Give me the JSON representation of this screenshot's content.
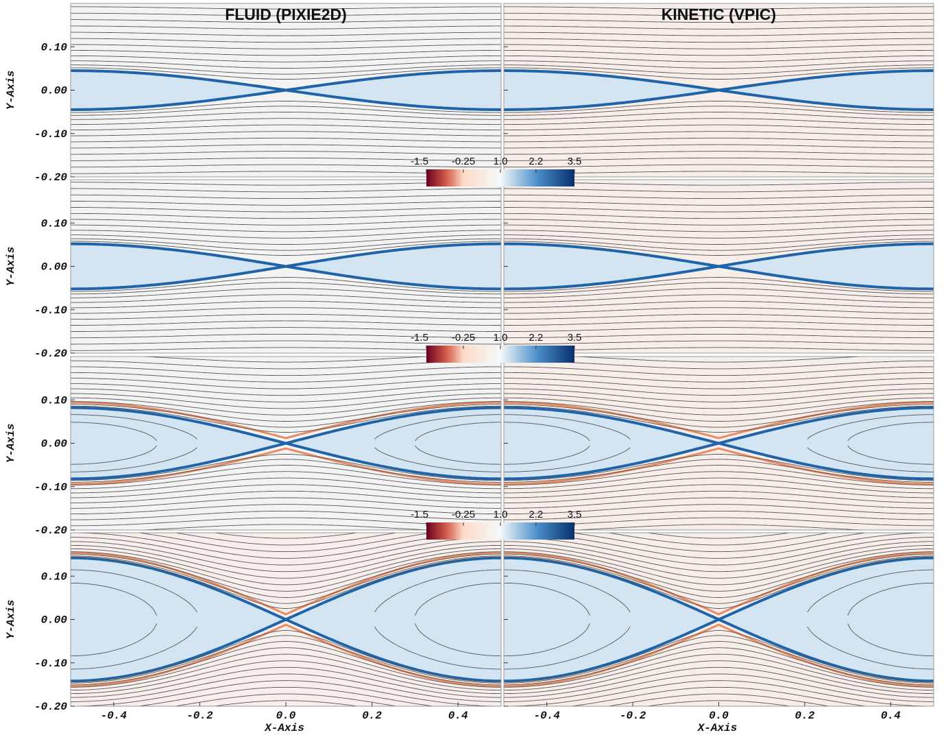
{
  "titles": [
    "FLUID (PIXIE2D)",
    "KINETIC (VPIC)"
  ],
  "x_axis_label": "X-Axis",
  "y_axis_label": "Y-Axis",
  "xlim": [
    -0.5,
    0.5
  ],
  "ylim": [
    -0.2,
    0.2
  ],
  "xticks": [
    -0.4,
    -0.2,
    {
      "value": 0,
      "label": "0.0"
    },
    0.2,
    0.4
  ],
  "yticks": [
    {
      "value": -0.2,
      "label": "-0.20"
    },
    {
      "value": -0.1,
      "label": "-0.10"
    },
    {
      "value": 0,
      "label": "0.00"
    },
    {
      "value": 0.1,
      "label": "0.10"
    }
  ],
  "colorbar": {
    "clim": [
      -1.5,
      3.5
    ],
    "ticks": [
      -1.5,
      -0.25,
      {
        "value": 1,
        "label": "1.0"
      },
      2.2,
      3.5
    ]
  }
}
